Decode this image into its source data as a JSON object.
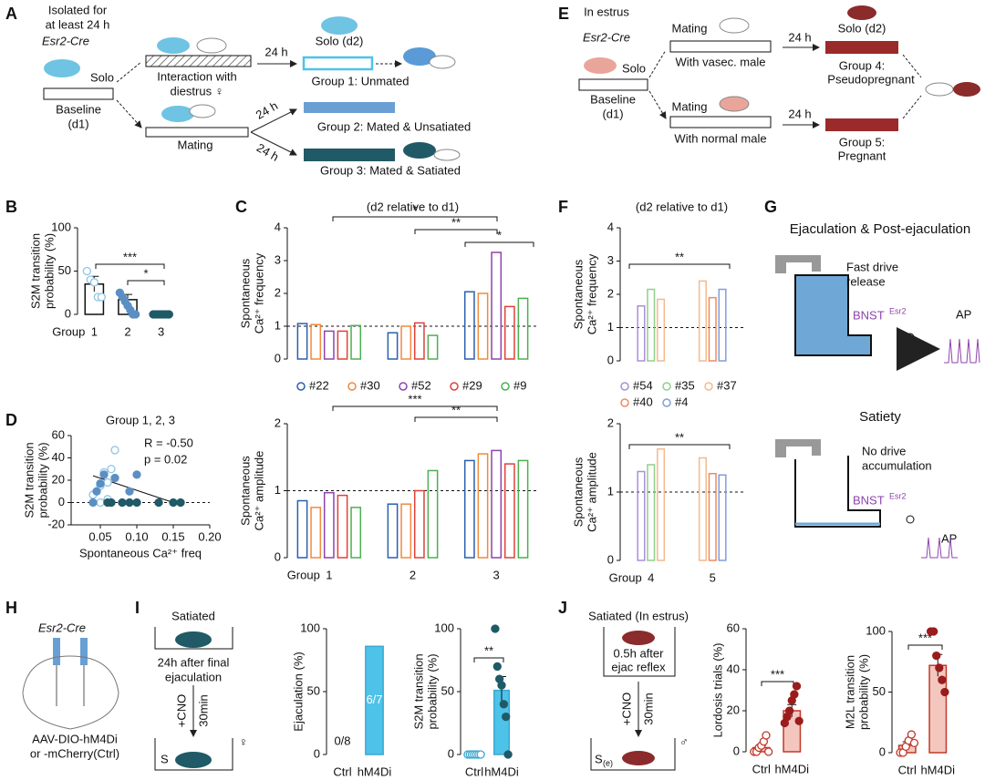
{
  "diagrams": {
    "panel_labels": [
      "A",
      "B",
      "C",
      "D",
      "E",
      "F",
      "G",
      "H",
      "I",
      "J"
    ],
    "A": [
      "Isolated for",
      "at least 24 h",
      "Esr2-Cre",
      "Solo",
      "Baseline",
      "(d1)",
      "Interaction with",
      "diestrus ♀",
      "Mating",
      "24 h",
      "Solo (d2)",
      "Group 1: Unmated",
      "24 h",
      "Group 2: Mated & Unsatiated",
      "24 h",
      "Group 3: Mated & Satiated"
    ],
    "E": [
      "In estrus",
      "Esr2-Cre",
      "Solo",
      "Baseline",
      "(d1)",
      "Mating",
      "With vasec. male",
      "Mating",
      "With normal male",
      "24 h",
      "Solo (d2)",
      "Group 4:",
      "Pseudopregnant",
      "24 h",
      "Group 5:",
      "Pregnant"
    ],
    "G": [
      "Ejaculation & Post-ejaculation",
      "Fast drive",
      "release",
      "BNST",
      "Esr2",
      "AP",
      "Satiety",
      "No drive",
      "accumulation",
      "BNST",
      "Esr2",
      "AP"
    ],
    "H": [
      "Esr2-Cre",
      "AAV-DIO-hM4Di",
      "or -mCherry(Ctrl)"
    ],
    "I": [
      "Satiated",
      "24h after final",
      "ejaculation",
      "+CNO",
      "30min",
      "S",
      "♀"
    ],
    "J": [
      "Satiated (In estrus)",
      "0.5h after",
      "ejac reflex",
      "+CNO",
      "30min",
      "S",
      "(e)",
      "♂"
    ]
  },
  "chart_data": [
    {
      "type": "bar",
      "ylabel": [
        "S2M transition",
        "probability (%)"
      ],
      "xlabel": "Group",
      "categories": [
        "1",
        "2",
        "3"
      ],
      "values": [
        35,
        17,
        0
      ],
      "errors": [
        9,
        6,
        0
      ],
      "bar_color": "#111111",
      "bar_fill": "none",
      "point_colors": [
        "#8ec5e6",
        "#5b8fc4",
        "#1f5a66"
      ],
      "point_filled": [
        false,
        true,
        true
      ],
      "points": [
        [
          50,
          40,
          37,
          20,
          20
        ],
        [
          25,
          20,
          15,
          10,
          5,
          0,
          0
        ],
        [
          0,
          0,
          0,
          0,
          0,
          0,
          0
        ]
      ],
      "ylim": [
        0,
        100
      ],
      "yticks": [
        0,
        50,
        100
      ],
      "annotations": [
        "***",
        "*"
      ]
    },
    {
      "type": "grouped_bar",
      "title": "(d2 relative to d1)",
      "ylabel": [
        "Spontaneous",
        "Ca²⁺ frequency"
      ],
      "categories": [
        null,
        null,
        null
      ],
      "series": [
        {
          "name": "#22",
          "color": "#2b5fad",
          "values": [
            1.08,
            0.8,
            2.05
          ]
        },
        {
          "name": "#30",
          "color": "#f08a3c",
          "values": [
            1.05,
            1.0,
            2.0
          ]
        },
        {
          "name": "#52",
          "color": "#8e44ad",
          "values": [
            0.85,
            null,
            3.25
          ]
        },
        {
          "name": "#29",
          "color": "#e0413a",
          "values": [
            0.85,
            1.1,
            1.6
          ]
        },
        {
          "name": "#9",
          "color": "#4cb050",
          "values": [
            1.02,
            0.72,
            1.85
          ]
        }
      ],
      "reference_line": 1,
      "ylim": [
        0,
        4
      ],
      "yticks": [
        0,
        1,
        2,
        3,
        4
      ],
      "annotations": [
        "*",
        "**",
        "*"
      ]
    },
    {
      "type": "grouped_bar",
      "ylabel": [
        "Spontaneous",
        "Ca²⁺ amplitude"
      ],
      "xlabel": "Group",
      "categories": [
        "1",
        "2",
        "3"
      ],
      "series": [
        {
          "color": "#2b5fad",
          "values": [
            0.85,
            0.8,
            1.45
          ]
        },
        {
          "color": "#f08a3c",
          "values": [
            0.75,
            0.8,
            1.55
          ]
        },
        {
          "color": "#8e44ad",
          "values": [
            0.97,
            null,
            1.6
          ]
        },
        {
          "color": "#e0413a",
          "values": [
            0.93,
            1.0,
            1.4
          ]
        },
        {
          "color": "#4cb050",
          "values": [
            0.75,
            1.3,
            1.45
          ]
        }
      ],
      "reference_line": 1,
      "ylim": [
        0,
        2
      ],
      "yticks": [
        0,
        1,
        2
      ],
      "annotations": [
        "***",
        "**"
      ]
    },
    {
      "type": "scatter",
      "title": "Group 1, 2, 3",
      "ylabel": [
        "S2M transition",
        "probability (%)"
      ],
      "xlabel": "Spontaneous Ca²⁺ freq",
      "series": [
        {
          "color": "#8ec5e6",
          "filled": false,
          "x": [
            0.04,
            0.05,
            0.055,
            0.06,
            0.065,
            0.07,
            0.06,
            0.05
          ],
          "y": [
            7,
            15,
            27,
            18,
            30,
            47,
            3,
            0
          ]
        },
        {
          "color": "#5b8fc4",
          "filled": true,
          "x": [
            0.045,
            0.05,
            0.055,
            0.07,
            0.09,
            0.1,
            0.04
          ],
          "y": [
            10,
            17,
            25,
            22,
            10,
            25,
            0
          ]
        },
        {
          "color": "#1f5a66",
          "filled": true,
          "x": [
            0.06,
            0.065,
            0.08,
            0.09,
            0.1,
            0.13,
            0.15,
            0.16
          ],
          "y": [
            0,
            0,
            0,
            0,
            0,
            0,
            0,
            0
          ]
        }
      ],
      "fit": {
        "x": [
          0.04,
          0.15
        ],
        "y": [
          24,
          0
        ]
      },
      "reference_line": 0,
      "xlim": [
        0.01,
        0.2
      ],
      "xticks": [
        0.05,
        {
          "value": 0.1,
          "label": "0.10"
        },
        0.15,
        {
          "value": 0.2,
          "label": "0.20"
        }
      ],
      "ylim": [
        -20,
        60
      ],
      "yticks": [
        -20,
        0,
        20,
        40,
        60
      ],
      "annotations": [
        "R = -0.50",
        "p = 0.02"
      ]
    },
    {
      "type": "grouped_bar",
      "title": "(d2 relative to d1)",
      "ylabel": [
        "Spontaneous",
        "Ca²⁺ frequency"
      ],
      "categories": [
        null,
        null
      ],
      "series": [
        {
          "name": "#54",
          "color": "#a98fd8",
          "values": [
            1.65,
            null
          ]
        },
        {
          "name": "#35",
          "color": "#8fd08a",
          "values": [
            2.15,
            null
          ]
        },
        {
          "name": "#37",
          "color": "#f6b98a",
          "values": [
            1.85,
            2.4
          ]
        },
        {
          "name": "#40",
          "color": "#f08a60",
          "values": [
            null,
            1.9
          ]
        },
        {
          "name": "#4",
          "color": "#7f9fd8",
          "values": [
            null,
            2.15
          ]
        }
      ],
      "reference_line": 1,
      "ylim": [
        0,
        4
      ],
      "yticks": [
        0,
        1,
        2,
        3,
        4
      ],
      "annotations": [
        "**"
      ]
    },
    {
      "type": "grouped_bar",
      "ylabel": [
        "Spontaneous",
        "Ca²⁺ amplitude"
      ],
      "xlabel": "Group",
      "categories": [
        "4",
        "5"
      ],
      "series": [
        {
          "color": "#a98fd8",
          "values": [
            1.3,
            null
          ]
        },
        {
          "color": "#8fd08a",
          "values": [
            1.4,
            null
          ]
        },
        {
          "color": "#f6b98a",
          "values": [
            1.63,
            1.5
          ]
        },
        {
          "color": "#f08a60",
          "values": [
            null,
            1.27
          ]
        },
        {
          "color": "#7f9fd8",
          "values": [
            null,
            1.25
          ]
        }
      ],
      "reference_line": 1,
      "ylim": [
        0,
        2
      ],
      "yticks": [
        0,
        1,
        2
      ],
      "annotations": [
        "**"
      ]
    },
    {
      "type": "bar",
      "ylabel": [
        "Ejaculation (%)"
      ],
      "categories": [
        "Ctrl",
        "hM4Di"
      ],
      "values": [
        0,
        86
      ],
      "value_labels": [
        "0/8",
        "6/7"
      ],
      "bar_color": "#3aa7d0",
      "bar_fill": "#4ec3ea",
      "ylim": [
        0,
        100
      ],
      "yticks": [
        0,
        50,
        100
      ]
    },
    {
      "type": "bar",
      "ylabel": [
        "S2M transition",
        "probability (%)"
      ],
      "categories": [
        "Ctrl",
        "hM4Di"
      ],
      "values": [
        0,
        51
      ],
      "errors": [
        0,
        11
      ],
      "bar_color": "#3aa7d0",
      "bar_fill": "#4ec3ea",
      "point_colors": [
        "#3aa7d0",
        "#1f5a66"
      ],
      "point_filled": [
        false,
        true
      ],
      "points": [
        [
          0,
          0,
          0,
          0,
          0,
          0,
          0
        ],
        [
          100,
          70,
          60,
          55,
          40,
          30,
          0
        ]
      ],
      "ylim": [
        0,
        100
      ],
      "yticks": [
        0,
        50,
        100
      ],
      "annotations": [
        "**"
      ]
    },
    {
      "type": "bar",
      "ylabel": [
        "Lordosis trials (%)"
      ],
      "categories": [
        "Ctrl",
        "hM4Di"
      ],
      "values": [
        2,
        20
      ],
      "errors": [
        1,
        3
      ],
      "bar_color": "#c0392b",
      "bar_fill": "#f4c7be",
      "point_colors": [
        "#c0392b",
        "#9b1c1c"
      ],
      "point_filled": [
        false,
        true
      ],
      "points": [
        [
          0,
          0,
          2,
          3,
          5,
          8,
          0
        ],
        [
          14,
          17,
          20,
          25,
          28,
          32,
          15
        ]
      ],
      "ylim": [
        0,
        60
      ],
      "yticks": [
        0,
        20,
        40,
        60
      ],
      "annotations": [
        "***"
      ]
    },
    {
      "type": "bar",
      "ylabel": [
        "M2L transition",
        "probability (%)"
      ],
      "categories": [
        "Ctrl",
        "hM4Di"
      ],
      "values": [
        6,
        72
      ],
      "errors": [
        3,
        9
      ],
      "bar_color": "#c0392b",
      "bar_fill": "#f4c7be",
      "point_colors": [
        "#c0392b",
        "#9b1c1c"
      ],
      "point_filled": [
        false,
        true
      ],
      "points": [
        [
          0,
          0,
          5,
          10,
          15,
          8
        ],
        [
          100,
          100,
          80,
          70,
          60,
          50
        ]
      ],
      "ylim": [
        0,
        100
      ],
      "yticks": [
        0,
        50,
        100
      ],
      "annotations": [
        "***"
      ]
    }
  ]
}
